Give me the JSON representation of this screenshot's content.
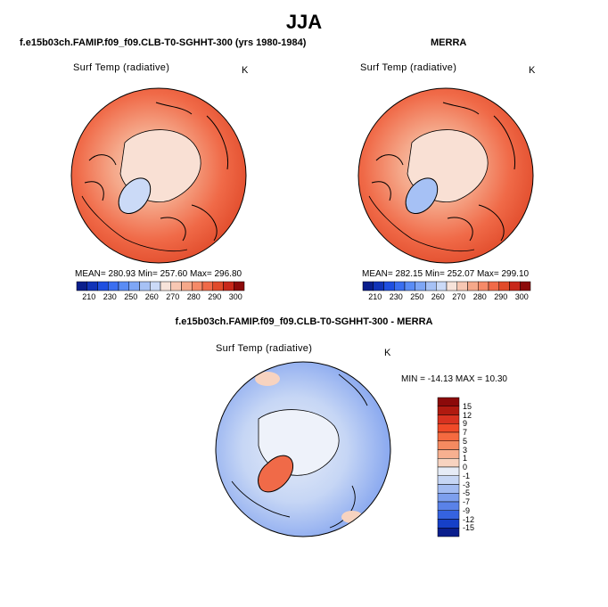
{
  "title": "JJA",
  "panels": {
    "model": {
      "subtitle": "f.e15b03ch.FAMIP.f09_f09.CLB-T0-SGHHT-300 (yrs 1980-1984)",
      "variable": "Surf Temp (radiative)",
      "units": "K",
      "stats": "MEAN= 280.93   Min= 257.60   Max= 296.80"
    },
    "obs": {
      "subtitle": "MERRA",
      "variable": "Surf Temp (radiative)",
      "units": "K",
      "stats": "MEAN= 282.15   Min= 252.07   Max= 299.10"
    },
    "diff": {
      "subtitle": "f.e15b03ch.FAMIP.f09_f09.CLB-T0-SGHHT-300 - MERRA",
      "variable": "Surf Temp (radiative)",
      "units": "K",
      "stats": "MIN = -14.13 MAX =  10.30"
    }
  },
  "colorbar_abs": {
    "labels": [
      "210",
      "230",
      "250",
      "260",
      "270",
      "280",
      "290",
      "300"
    ],
    "colors": [
      "#0a1e8c",
      "#1133b8",
      "#1f4fe0",
      "#3a6ef0",
      "#5a8cf5",
      "#7ea6f5",
      "#a6c1f5",
      "#cbdaf7",
      "#f7e3da",
      "#f7c7b3",
      "#f5a88a",
      "#f58a68",
      "#f06a48",
      "#e04a2a",
      "#c8281a",
      "#8c0a0a"
    ]
  },
  "colorbar_diff": {
    "labels": [
      "15",
      "12",
      "9",
      "7",
      "5",
      "3",
      "1",
      "0",
      "-1",
      "-3",
      "-5",
      "-7",
      "-9",
      "-12",
      "-15"
    ],
    "colors": [
      "#8c0a0a",
      "#b01a10",
      "#d83220",
      "#f04a28",
      "#f56a40",
      "#f58a60",
      "#f7b090",
      "#f7d3c0",
      "#e6ecf7",
      "#c6d6f5",
      "#a3bcf2",
      "#7d9fee",
      "#5a82e8",
      "#3563e0",
      "#1640c8",
      "#0a1e8c"
    ]
  }
}
